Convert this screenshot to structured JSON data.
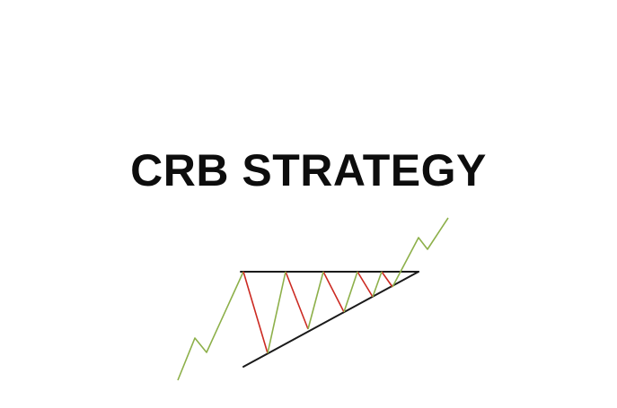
{
  "title": "CRB STRATEGY",
  "colors": {
    "background": "#ffffff",
    "title_text": "#0d0d0d",
    "uptrend_line": "#8db04a",
    "down_swing_line": "#cc2a22",
    "trendline": "#1a1a1a"
  },
  "icons": {
    "pattern": "ascending-triangle-breakout-icon"
  }
}
